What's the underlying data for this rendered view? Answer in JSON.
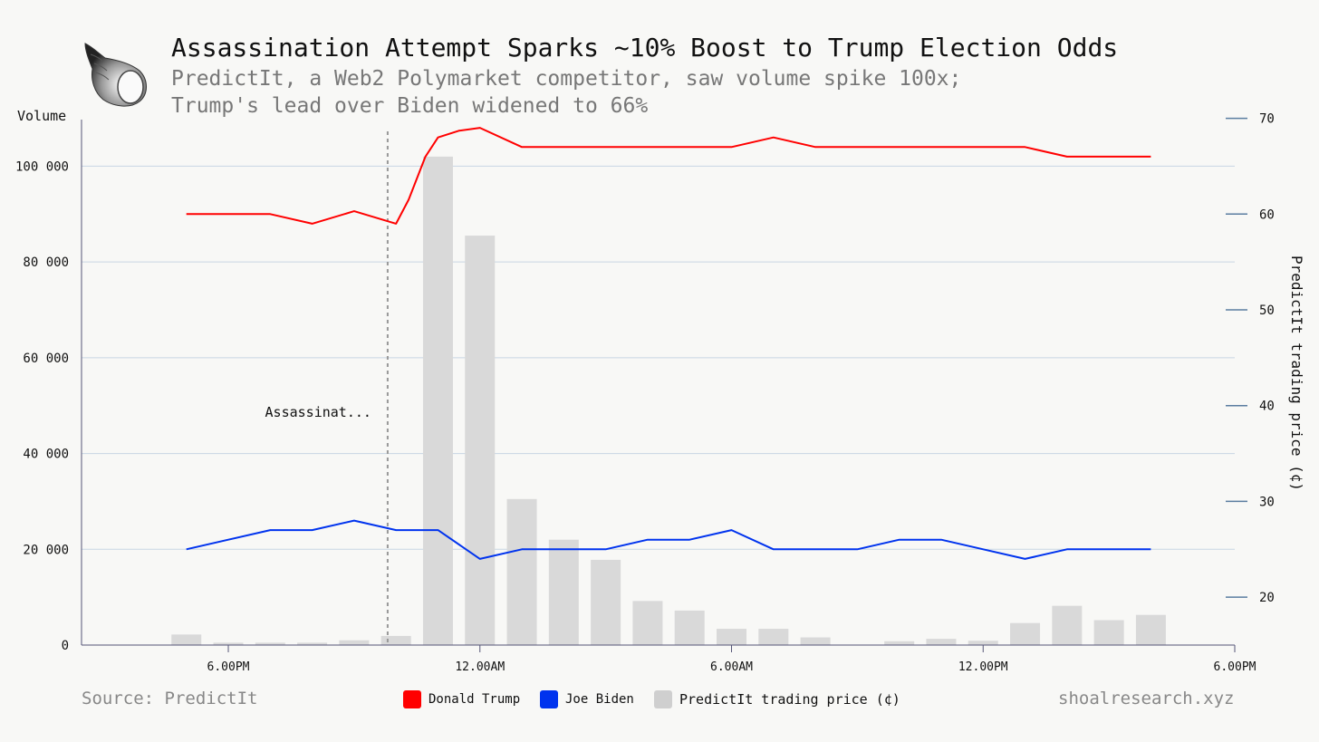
{
  "header": {
    "title": "Assassination Attempt Sparks ~10% Boost to Trump Election Odds",
    "subtitle_line1": "PredictIt, a Web2 Polymarket competitor, saw volume spike 100x;",
    "subtitle_line2": "Trump's lead over Biden widened to 66%"
  },
  "footer": {
    "source": "Source: PredictIt",
    "site": "shoalresearch.xyz"
  },
  "legend": {
    "trump": "Donald Trump",
    "biden": "Joe Biden",
    "volume": "PredictIt trading price (¢)"
  },
  "colors": {
    "trump": "#ff0000",
    "biden": "#0033ee",
    "volume": "#d9d9d9",
    "grid": "#c8d6e3"
  },
  "logo": {
    "icon": "seashell-icon"
  },
  "chart_data": {
    "type": "bar",
    "title": "Assassination Attempt Sparks ~10% Boost to Trump Election Odds",
    "xlabel": "",
    "ylabel": "Volume",
    "y2label": "PredictIt trading price (¢)",
    "x_tick_labels": [
      "6.00PM",
      "12.00AM",
      "6.00AM",
      "12.00PM",
      "6.00PM"
    ],
    "x_tick_hours": [
      18,
      24,
      30,
      36,
      42
    ],
    "xlim_hours": [
      14.5,
      42
    ],
    "ylim": [
      0,
      112000
    ],
    "y_ticks": [
      0,
      20000,
      40000,
      60000,
      80000,
      100000
    ],
    "y_tick_labels": [
      "0",
      "20 000",
      "40 000",
      "60 000",
      "80 000",
      "100 000"
    ],
    "y2lim": [
      15,
      71
    ],
    "y2_ticks": [
      20,
      30,
      40,
      50,
      60,
      70
    ],
    "y2_tick_labels": [
      "20",
      "30",
      "40",
      "50",
      "60",
      "70"
    ],
    "grid": true,
    "legend_position": "bottom-center",
    "annotation": {
      "label": "Assassinat...",
      "hour": 21.8
    },
    "bars": {
      "name": "PredictIt trading price (¢)",
      "hours": [
        17,
        18,
        19,
        20,
        21,
        22,
        23,
        24,
        25,
        26,
        27,
        28,
        29,
        30,
        31,
        32,
        34,
        35,
        36,
        37,
        38,
        39,
        40
      ],
      "values": [
        2200,
        500,
        500,
        500,
        1000,
        1900,
        102000,
        85500,
        30500,
        22000,
        17800,
        9200,
        7200,
        3400,
        3400,
        1600,
        800,
        1300,
        900,
        4600,
        8200,
        5200,
        6300
      ]
    },
    "series": [
      {
        "name": "Donald Trump",
        "hours": [
          17,
          19,
          20,
          21,
          22,
          22.3,
          22.7,
          23,
          23.5,
          24,
          25,
          26,
          27,
          28,
          29,
          30,
          31,
          32,
          33,
          34,
          35,
          36,
          37,
          38,
          39,
          40
        ],
        "values": [
          60,
          60,
          59,
          60.3,
          59,
          61.5,
          66,
          68,
          68.7,
          69,
          67,
          67,
          67,
          67,
          67,
          67,
          68,
          67,
          67,
          67,
          67,
          67,
          67,
          66,
          66,
          66
        ]
      },
      {
        "name": "Joe Biden",
        "hours": [
          17,
          19,
          20,
          21,
          22,
          23,
          24,
          25,
          26,
          27,
          28,
          29,
          30,
          31,
          32,
          33,
          34,
          35,
          36,
          37,
          38,
          39,
          40
        ],
        "values": [
          25,
          27,
          27,
          28,
          27,
          27,
          24,
          25,
          25,
          25,
          26,
          26,
          27,
          25,
          25,
          25,
          26,
          26,
          25,
          24,
          25,
          25,
          25
        ]
      }
    ]
  }
}
